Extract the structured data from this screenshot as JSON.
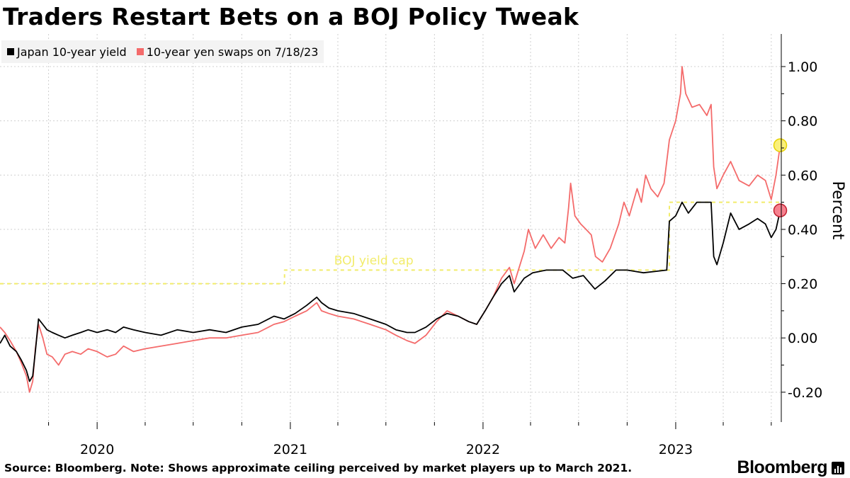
{
  "title": "Traders Restart Bets on a BOJ Policy Tweak",
  "footer": {
    "note": "Source: Bloomberg. Note: Shows approximate ceiling perceived by market players up to March 2021.",
    "brand": "Bloomberg"
  },
  "chart_data": {
    "type": "line",
    "title": "Traders Restart Bets on a BOJ Policy Tweak",
    "ylabel": "Percent",
    "xlabel": "",
    "ylim": [
      -0.31,
      1.12
    ],
    "xlim": [
      "2019-07-01",
      "2023-07-20"
    ],
    "y_ticks": [
      -0.2,
      0.0,
      0.2,
      0.4,
      0.6,
      0.8,
      1.0
    ],
    "y_tick_labels": [
      "-0.20",
      "0.00",
      "0.20",
      "0.40",
      "0.60",
      "0.80",
      "1.00"
    ],
    "x_tick_labels": [
      {
        "label": "2020",
        "x": "2020-01-01"
      },
      {
        "label": "2021",
        "x": "2021-01-01"
      },
      {
        "label": "2022",
        "x": "2022-01-01"
      },
      {
        "label": "2023",
        "x": "2023-01-01"
      }
    ],
    "axis_position": "right",
    "grid": true,
    "legend": {
      "position": "top-left",
      "entries": [
        {
          "label": "Japan 10-year yield",
          "color": "#000000"
        },
        {
          "label": "10-year yen swaps on 7/18/23",
          "color": "#f46b6b"
        }
      ]
    },
    "annotations": [
      {
        "text": "BOJ yield cap",
        "x": "2021-03-25",
        "y": 0.27,
        "color": "#f2ec6a"
      }
    ],
    "series": [
      {
        "name": "Japan 10-year yield",
        "color": "#000000",
        "points": [
          [
            "2019-07-01",
            -0.02
          ],
          [
            "2019-07-10",
            0.01
          ],
          [
            "2019-07-20",
            -0.03
          ],
          [
            "2019-08-01",
            -0.05
          ],
          [
            "2019-08-10",
            -0.08
          ],
          [
            "2019-08-20",
            -0.12
          ],
          [
            "2019-08-26",
            -0.16
          ],
          [
            "2019-09-01",
            -0.14
          ],
          [
            "2019-09-06",
            -0.05
          ],
          [
            "2019-09-12",
            0.07
          ],
          [
            "2019-09-20",
            0.05
          ],
          [
            "2019-09-28",
            0.03
          ],
          [
            "2019-10-08",
            0.02
          ],
          [
            "2019-10-20",
            0.01
          ],
          [
            "2019-11-01",
            0.0
          ],
          [
            "2019-11-15",
            0.01
          ],
          [
            "2019-12-01",
            0.02
          ],
          [
            "2019-12-15",
            0.03
          ],
          [
            "2020-01-01",
            0.02
          ],
          [
            "2020-01-20",
            0.03
          ],
          [
            "2020-02-05",
            0.02
          ],
          [
            "2020-02-20",
            0.04
          ],
          [
            "2020-03-10",
            0.03
          ],
          [
            "2020-04-01",
            0.02
          ],
          [
            "2020-05-01",
            0.01
          ],
          [
            "2020-06-01",
            0.03
          ],
          [
            "2020-07-01",
            0.02
          ],
          [
            "2020-08-01",
            0.03
          ],
          [
            "2020-09-01",
            0.02
          ],
          [
            "2020-10-01",
            0.04
          ],
          [
            "2020-11-01",
            0.05
          ],
          [
            "2020-12-01",
            0.08
          ],
          [
            "2020-12-20",
            0.07
          ],
          [
            "2021-01-10",
            0.09
          ],
          [
            "2021-02-01",
            0.12
          ],
          [
            "2021-02-20",
            0.15
          ],
          [
            "2021-03-01",
            0.13
          ],
          [
            "2021-03-15",
            0.11
          ],
          [
            "2021-04-01",
            0.1
          ],
          [
            "2021-05-01",
            0.09
          ],
          [
            "2021-06-01",
            0.07
          ],
          [
            "2021-07-01",
            0.05
          ],
          [
            "2021-07-20",
            0.03
          ],
          [
            "2021-08-10",
            0.02
          ],
          [
            "2021-08-25",
            0.02
          ],
          [
            "2021-09-15",
            0.04
          ],
          [
            "2021-10-05",
            0.07
          ],
          [
            "2021-10-25",
            0.09
          ],
          [
            "2021-11-15",
            0.08
          ],
          [
            "2021-12-05",
            0.06
          ],
          [
            "2021-12-20",
            0.05
          ],
          [
            "2022-01-05",
            0.1
          ],
          [
            "2022-01-20",
            0.15
          ],
          [
            "2022-02-05",
            0.2
          ],
          [
            "2022-02-20",
            0.23
          ],
          [
            "2022-03-01",
            0.17
          ],
          [
            "2022-03-20",
            0.22
          ],
          [
            "2022-04-05",
            0.24
          ],
          [
            "2022-05-01",
            0.25
          ],
          [
            "2022-06-01",
            0.25
          ],
          [
            "2022-06-20",
            0.22
          ],
          [
            "2022-07-10",
            0.23
          ],
          [
            "2022-08-01",
            0.18
          ],
          [
            "2022-08-20",
            0.21
          ],
          [
            "2022-09-10",
            0.25
          ],
          [
            "2022-10-01",
            0.25
          ],
          [
            "2022-11-01",
            0.24
          ],
          [
            "2022-12-15",
            0.25
          ],
          [
            "2022-12-20",
            0.43
          ],
          [
            "2023-01-01",
            0.45
          ],
          [
            "2023-01-13",
            0.5
          ],
          [
            "2023-01-25",
            0.46
          ],
          [
            "2023-02-10",
            0.5
          ],
          [
            "2023-03-01",
            0.5
          ],
          [
            "2023-03-09",
            0.5
          ],
          [
            "2023-03-14",
            0.3
          ],
          [
            "2023-03-20",
            0.27
          ],
          [
            "2023-04-01",
            0.35
          ],
          [
            "2023-04-15",
            0.46
          ],
          [
            "2023-05-01",
            0.4
          ],
          [
            "2023-05-20",
            0.42
          ],
          [
            "2023-06-05",
            0.44
          ],
          [
            "2023-06-20",
            0.42
          ],
          [
            "2023-07-01",
            0.37
          ],
          [
            "2023-07-10",
            0.4
          ],
          [
            "2023-07-18",
            0.47
          ]
        ]
      },
      {
        "name": "10-year yen swaps on 7/18/23",
        "color": "#f46b6b",
        "points": [
          [
            "2019-07-01",
            0.04
          ],
          [
            "2019-07-10",
            0.02
          ],
          [
            "2019-07-20",
            -0.01
          ],
          [
            "2019-08-01",
            -0.05
          ],
          [
            "2019-08-10",
            -0.09
          ],
          [
            "2019-08-20",
            -0.14
          ],
          [
            "2019-08-26",
            -0.2
          ],
          [
            "2019-09-01",
            -0.16
          ],
          [
            "2019-09-06",
            -0.04
          ],
          [
            "2019-09-12",
            0.05
          ],
          [
            "2019-09-20",
            0.0
          ],
          [
            "2019-09-28",
            -0.06
          ],
          [
            "2019-10-08",
            -0.07
          ],
          [
            "2019-10-20",
            -0.1
          ],
          [
            "2019-11-01",
            -0.06
          ],
          [
            "2019-11-15",
            -0.05
          ],
          [
            "2019-12-01",
            -0.06
          ],
          [
            "2019-12-15",
            -0.04
          ],
          [
            "2020-01-01",
            -0.05
          ],
          [
            "2020-01-20",
            -0.07
          ],
          [
            "2020-02-05",
            -0.06
          ],
          [
            "2020-02-20",
            -0.03
          ],
          [
            "2020-03-10",
            -0.05
          ],
          [
            "2020-04-01",
            -0.04
          ],
          [
            "2020-05-01",
            -0.03
          ],
          [
            "2020-06-01",
            -0.02
          ],
          [
            "2020-07-01",
            -0.01
          ],
          [
            "2020-08-01",
            0.0
          ],
          [
            "2020-09-01",
            0.0
          ],
          [
            "2020-10-01",
            0.01
          ],
          [
            "2020-11-01",
            0.02
          ],
          [
            "2020-12-01",
            0.05
          ],
          [
            "2020-12-20",
            0.06
          ],
          [
            "2021-01-10",
            0.08
          ],
          [
            "2021-02-01",
            0.1
          ],
          [
            "2021-02-20",
            0.13
          ],
          [
            "2021-03-01",
            0.1
          ],
          [
            "2021-03-15",
            0.09
          ],
          [
            "2021-04-01",
            0.08
          ],
          [
            "2021-05-01",
            0.07
          ],
          [
            "2021-06-01",
            0.05
          ],
          [
            "2021-07-01",
            0.03
          ],
          [
            "2021-07-20",
            0.01
          ],
          [
            "2021-08-10",
            -0.01
          ],
          [
            "2021-08-25",
            -0.02
          ],
          [
            "2021-09-15",
            0.01
          ],
          [
            "2021-10-05",
            0.06
          ],
          [
            "2021-10-25",
            0.1
          ],
          [
            "2021-11-15",
            0.08
          ],
          [
            "2021-12-05",
            0.06
          ],
          [
            "2021-12-20",
            0.05
          ],
          [
            "2022-01-05",
            0.1
          ],
          [
            "2022-01-20",
            0.15
          ],
          [
            "2022-02-05",
            0.22
          ],
          [
            "2022-02-20",
            0.26
          ],
          [
            "2022-03-01",
            0.2
          ],
          [
            "2022-03-20",
            0.32
          ],
          [
            "2022-03-28",
            0.4
          ],
          [
            "2022-04-10",
            0.33
          ],
          [
            "2022-04-25",
            0.38
          ],
          [
            "2022-05-10",
            0.33
          ],
          [
            "2022-05-25",
            0.37
          ],
          [
            "2022-06-05",
            0.35
          ],
          [
            "2022-06-12",
            0.48
          ],
          [
            "2022-06-16",
            0.57
          ],
          [
            "2022-06-24",
            0.45
          ],
          [
            "2022-07-05",
            0.42
          ],
          [
            "2022-07-15",
            0.4
          ],
          [
            "2022-07-25",
            0.38
          ],
          [
            "2022-08-02",
            0.3
          ],
          [
            "2022-08-15",
            0.28
          ],
          [
            "2022-08-30",
            0.33
          ],
          [
            "2022-09-15",
            0.42
          ],
          [
            "2022-09-25",
            0.5
          ],
          [
            "2022-10-05",
            0.45
          ],
          [
            "2022-10-20",
            0.55
          ],
          [
            "2022-10-28",
            0.5
          ],
          [
            "2022-11-05",
            0.6
          ],
          [
            "2022-11-15",
            0.55
          ],
          [
            "2022-11-28",
            0.52
          ],
          [
            "2022-12-10",
            0.57
          ],
          [
            "2022-12-20",
            0.73
          ],
          [
            "2023-01-01",
            0.8
          ],
          [
            "2023-01-10",
            0.9
          ],
          [
            "2023-01-13",
            1.0
          ],
          [
            "2023-01-20",
            0.9
          ],
          [
            "2023-02-01",
            0.85
          ],
          [
            "2023-02-15",
            0.86
          ],
          [
            "2023-03-01",
            0.82
          ],
          [
            "2023-03-09",
            0.86
          ],
          [
            "2023-03-14",
            0.63
          ],
          [
            "2023-03-20",
            0.55
          ],
          [
            "2023-04-01",
            0.6
          ],
          [
            "2023-04-15",
            0.65
          ],
          [
            "2023-05-01",
            0.58
          ],
          [
            "2023-05-20",
            0.56
          ],
          [
            "2023-06-05",
            0.6
          ],
          [
            "2023-06-20",
            0.58
          ],
          [
            "2023-07-01",
            0.51
          ],
          [
            "2023-07-10",
            0.6
          ],
          [
            "2023-07-18",
            0.71
          ]
        ]
      },
      {
        "name": "",
        "color": "#f2ec6a",
        "style": "dashed",
        "points": [
          [
            "2019-07-01",
            0.2
          ],
          [
            "2020-12-21",
            0.2
          ],
          [
            "2020-12-21",
            0.25
          ],
          [
            "2022-12-20",
            0.25
          ],
          [
            "2022-12-20",
            0.5
          ],
          [
            "2023-07-18",
            0.5
          ]
        ]
      }
    ],
    "markers": [
      {
        "x": "2023-07-18",
        "y": 0.71,
        "fill": "#faf07a",
        "stroke": "#e6d100"
      },
      {
        "x": "2023-07-18",
        "y": 0.47,
        "fill": "#f6818f",
        "stroke": "#c11d2e"
      }
    ]
  }
}
